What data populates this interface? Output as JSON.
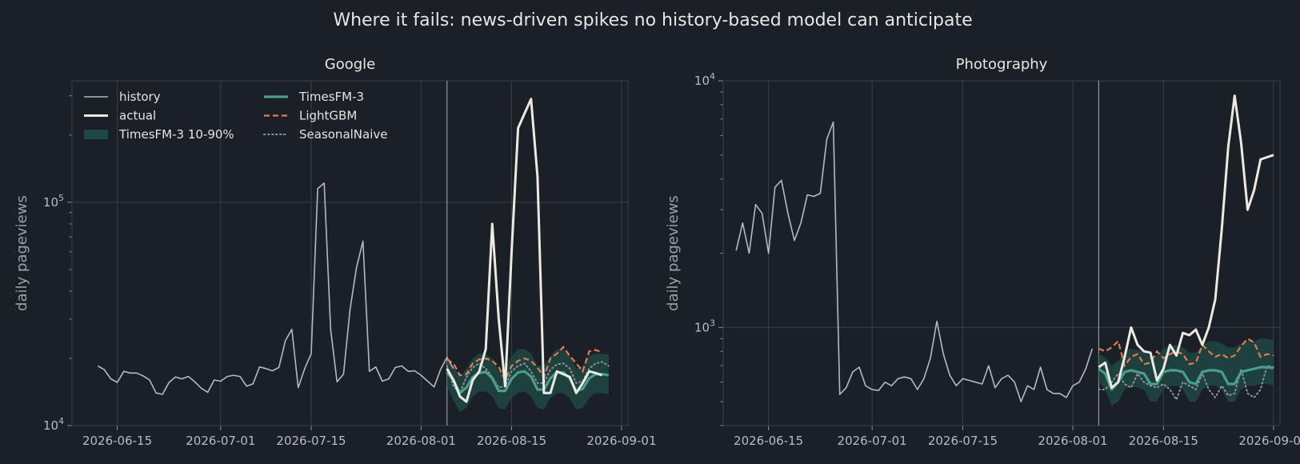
{
  "suptitle": "Where it fails: news-driven spikes no history-based model can anticipate",
  "colors": {
    "background": "#1b1f26",
    "history": "#b4b8c0",
    "actual": "#ece9e2",
    "band": "#1f4842",
    "timesfm": "#4a9e8a",
    "lightgbm": "#e07b5a",
    "seasonal": "#8c929b",
    "grid": "#3a3f48"
  },
  "legend": {
    "history": "history",
    "actual": "actual",
    "band": "TimesFM-3 10-90%",
    "timesfm": "TimesFM-3",
    "lightgbm": "LightGBM",
    "seasonal": "SeasonalNaive"
  },
  "chart_data": [
    {
      "type": "line",
      "title": "Google",
      "ylabel": "daily pageviews",
      "yscale": "log",
      "ylim": [
        10000,
        350000
      ],
      "xlim": [
        "2026-06-08",
        "2026-09-02"
      ],
      "x_ticks": [
        "2026-06-15",
        "2026-07-01",
        "2026-07-15",
        "2026-08-01",
        "2026-08-15",
        "2026-09-01"
      ],
      "y_ticks": [
        {
          "value": 10000,
          "base": "10",
          "exp": "4"
        },
        {
          "value": 100000,
          "base": "10",
          "exp": "5"
        }
      ],
      "grid": true,
      "legend_position": "top-left",
      "forecast_start": "2026-08-05",
      "history": {
        "start": "2026-06-12",
        "values": [
          18500,
          17800,
          16200,
          15600,
          17500,
          17200,
          17200,
          16700,
          16000,
          14000,
          13800,
          15600,
          16500,
          16200,
          16600,
          15700,
          14700,
          14100,
          16000,
          15800,
          16600,
          16800,
          16600,
          15000,
          15400,
          18300,
          18000,
          17600,
          18200,
          24000,
          27000,
          14800,
          18000,
          21000,
          115000,
          122000,
          27000,
          15700,
          17000,
          33000,
          51000,
          67000,
          17500,
          18300,
          15800,
          16200,
          18200,
          18500,
          17500,
          17600,
          16800,
          15800,
          14900,
          17800,
          20200,
          18000
        ]
      },
      "actual": {
        "start": "2026-08-05",
        "values": [
          18000,
          16000,
          13500,
          12800,
          16000,
          17500,
          22000,
          80000,
          30000,
          15000,
          60000,
          215000,
          250000,
          290000,
          130000,
          14000,
          14000,
          17500,
          17000,
          16500,
          14000,
          15500,
          17500,
          17200,
          16800
        ]
      },
      "timesfm": {
        "start": "2026-08-05",
        "values": [
          17300,
          16000,
          14000,
          14800,
          16500,
          17200,
          17400,
          16300,
          14300,
          14300,
          16200,
          17300,
          17500,
          16600,
          14500,
          14500,
          16300,
          17300,
          17300,
          16300,
          14300,
          14600,
          16300,
          17000,
          17000,
          16800
        ]
      },
      "band_low": {
        "start": "2026-08-05",
        "values": [
          15000,
          13000,
          11500,
          12000,
          13500,
          14200,
          14200,
          13500,
          12000,
          11800,
          13300,
          14000,
          14200,
          13500,
          12000,
          11800,
          13300,
          14000,
          14000,
          13200,
          11800,
          12000,
          13300,
          14000,
          14000,
          13800
        ]
      },
      "band_high": {
        "start": "2026-08-05",
        "values": [
          19500,
          18500,
          16500,
          18000,
          20000,
          21000,
          21000,
          20000,
          17500,
          18000,
          20500,
          22000,
          22000,
          21000,
          18500,
          18500,
          20500,
          22000,
          22000,
          20500,
          18000,
          18500,
          20500,
          21000,
          21000,
          20800
        ]
      },
      "lightgbm": {
        "start": "2026-08-05",
        "values": [
          19800,
          19000,
          16800,
          17000,
          19000,
          19800,
          20000,
          19500,
          18300,
          16000,
          18500,
          19500,
          20000,
          19500,
          18200,
          16500,
          20000,
          21000,
          22500,
          20500,
          19000,
          17500,
          21500,
          21800,
          21300
        ]
      },
      "seasonal": {
        "start": "2026-08-05",
        "values": [
          18500,
          15000,
          14000,
          16500,
          18200,
          19000,
          18000,
          16500,
          14800,
          15000,
          17500,
          18500,
          19000,
          17500,
          15500,
          15500,
          17800,
          18800,
          19000,
          18000,
          15500,
          15800,
          18000,
          19000,
          19300,
          18500
        ]
      }
    },
    {
      "type": "line",
      "title": "Photography",
      "ylabel": "daily pageviews",
      "yscale": "log",
      "ylim": [
        400,
        10000
      ],
      "xlim": [
        "2026-06-08",
        "2026-09-02"
      ],
      "x_ticks": [
        "2026-06-15",
        "2026-07-01",
        "2026-07-15",
        "2026-08-01",
        "2026-08-15",
        "2026-09-01"
      ],
      "y_ticks": [
        {
          "value": 1000,
          "base": "10",
          "exp": "3"
        },
        {
          "value": 10000,
          "base": "10",
          "exp": "4"
        }
      ],
      "grid": true,
      "forecast_start": "2026-08-05",
      "history": {
        "start": "2026-06-10",
        "values": [
          2050,
          2650,
          2000,
          3150,
          2900,
          2000,
          3700,
          3950,
          2900,
          2250,
          2650,
          3450,
          3400,
          3500,
          5800,
          6800,
          535,
          570,
          660,
          690,
          580,
          560,
          555,
          600,
          580,
          620,
          630,
          620,
          560,
          620,
          750,
          1060,
          780,
          640,
          580,
          620,
          610,
          600,
          590,
          700,
          570,
          620,
          640,
          600,
          500,
          580,
          560,
          690,
          560,
          540,
          540,
          520,
          580,
          600,
          680,
          820
        ]
      },
      "actual": {
        "start": "2026-08-05",
        "values": [
          690,
          720,
          570,
          600,
          760,
          1000,
          850,
          800,
          790,
          610,
          680,
          850,
          770,
          950,
          930,
          980,
          850,
          1000,
          1300,
          2500,
          5400,
          8700,
          5600,
          3000,
          3600,
          4800,
          4900,
          5000
        ]
      },
      "timesfm": {
        "start": "2026-08-05",
        "values": [
          680,
          650,
          560,
          600,
          660,
          670,
          660,
          650,
          590,
          590,
          660,
          670,
          670,
          660,
          600,
          590,
          660,
          670,
          670,
          660,
          590,
          590,
          660,
          670,
          680,
          690,
          690,
          685
        ]
      },
      "band_low": {
        "start": "2026-08-05",
        "values": [
          600,
          560,
          480,
          500,
          560,
          580,
          570,
          560,
          500,
          500,
          560,
          580,
          580,
          560,
          500,
          500,
          560,
          580,
          580,
          560,
          500,
          500,
          560,
          580,
          580,
          590,
          590,
          580
        ]
      },
      "band_high": {
        "start": "2026-08-05",
        "values": [
          780,
          760,
          700,
          730,
          800,
          820,
          810,
          800,
          760,
          770,
          820,
          840,
          850,
          830,
          790,
          790,
          840,
          880,
          880,
          860,
          830,
          830,
          860,
          880,
          880,
          900,
          900,
          890
        ]
      },
      "lightgbm": {
        "start": "2026-08-05",
        "values": [
          820,
          800,
          830,
          880,
          700,
          760,
          780,
          710,
          720,
          800,
          750,
          780,
          800,
          780,
          710,
          720,
          850,
          800,
          760,
          780,
          750,
          770,
          840,
          900,
          870,
          760,
          780,
          770
        ]
      },
      "seasonal": {
        "start": "2026-08-05",
        "values": [
          560,
          560,
          600,
          650,
          590,
          570,
          650,
          600,
          580,
          570,
          590,
          560,
          510,
          600,
          580,
          560,
          650,
          560,
          520,
          580,
          530,
          540,
          680,
          540,
          520,
          560,
          700,
          690
        ]
      }
    }
  ]
}
